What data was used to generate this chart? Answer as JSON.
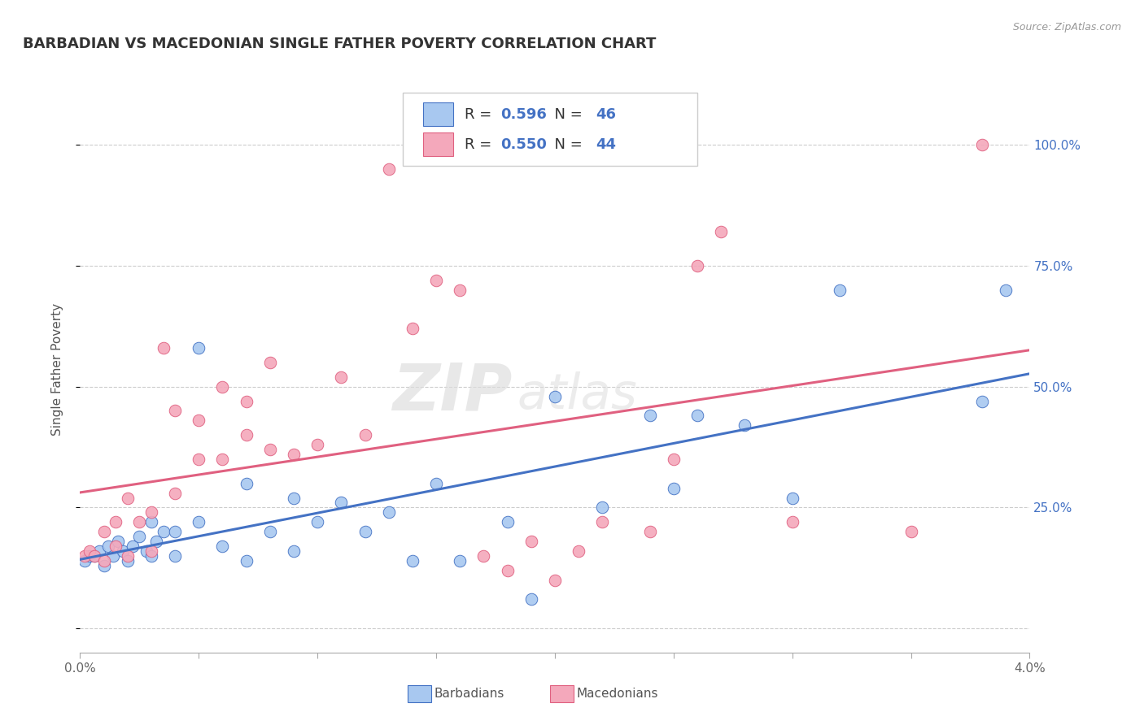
{
  "title": "BARBADIAN VS MACEDONIAN SINGLE FATHER POVERTY CORRELATION CHART",
  "source": "Source: ZipAtlas.com",
  "ylabel": "Single Father Poverty",
  "watermark_1": "ZIP",
  "watermark_2": "atlas",
  "legend_barbadians": "Barbadians",
  "legend_macedonians": "Macedonians",
  "r_barbadians": 0.596,
  "n_barbadians": 46,
  "r_macedonians": 0.55,
  "n_macedonians": 44,
  "color_barbadians": "#A8C8F0",
  "color_macedonians": "#F4A8BB",
  "line_color_barbadians": "#4472C4",
  "line_color_macedonians": "#E06080",
  "text_color_blue": "#4472C4",
  "xlim": [
    0.0,
    0.04
  ],
  "ylim": [
    -0.05,
    1.12
  ],
  "xtick_labels": [
    "0.0%",
    "",
    "",
    "",
    "",
    "",
    "",
    "",
    "4.0%"
  ],
  "ytick_positions": [
    0.0,
    0.25,
    0.5,
    0.75,
    1.0
  ],
  "ytick_labels": [
    "",
    "25.0%",
    "50.0%",
    "75.0%",
    "100.0%"
  ],
  "background_color": "#FFFFFF",
  "grid_color": "#CCCCCC",
  "barbadians_x": [
    0.0002,
    0.0004,
    0.0006,
    0.0008,
    0.001,
    0.0012,
    0.0014,
    0.0016,
    0.0018,
    0.002,
    0.0022,
    0.0025,
    0.0028,
    0.003,
    0.003,
    0.0032,
    0.0035,
    0.004,
    0.004,
    0.005,
    0.005,
    0.006,
    0.007,
    0.007,
    0.008,
    0.009,
    0.009,
    0.01,
    0.011,
    0.012,
    0.013,
    0.014,
    0.015,
    0.016,
    0.018,
    0.019,
    0.02,
    0.022,
    0.024,
    0.025,
    0.026,
    0.028,
    0.03,
    0.032,
    0.038,
    0.039
  ],
  "barbadians_y": [
    0.14,
    0.15,
    0.15,
    0.16,
    0.13,
    0.17,
    0.15,
    0.18,
    0.16,
    0.14,
    0.17,
    0.19,
    0.16,
    0.15,
    0.22,
    0.18,
    0.2,
    0.15,
    0.2,
    0.22,
    0.58,
    0.17,
    0.14,
    0.3,
    0.2,
    0.16,
    0.27,
    0.22,
    0.26,
    0.2,
    0.24,
    0.14,
    0.3,
    0.14,
    0.22,
    0.06,
    0.48,
    0.25,
    0.44,
    0.29,
    0.44,
    0.42,
    0.27,
    0.7,
    0.47,
    0.7
  ],
  "macedonians_x": [
    0.0002,
    0.0004,
    0.0006,
    0.001,
    0.001,
    0.0015,
    0.0015,
    0.002,
    0.002,
    0.0025,
    0.003,
    0.003,
    0.0035,
    0.004,
    0.004,
    0.005,
    0.005,
    0.006,
    0.006,
    0.007,
    0.007,
    0.008,
    0.008,
    0.009,
    0.01,
    0.011,
    0.012,
    0.013,
    0.014,
    0.015,
    0.016,
    0.017,
    0.018,
    0.019,
    0.02,
    0.021,
    0.022,
    0.024,
    0.025,
    0.026,
    0.027,
    0.03,
    0.035,
    0.038
  ],
  "macedonians_y": [
    0.15,
    0.16,
    0.15,
    0.14,
    0.2,
    0.17,
    0.22,
    0.15,
    0.27,
    0.22,
    0.24,
    0.16,
    0.58,
    0.28,
    0.45,
    0.35,
    0.43,
    0.35,
    0.5,
    0.4,
    0.47,
    0.37,
    0.55,
    0.36,
    0.38,
    0.52,
    0.4,
    0.95,
    0.62,
    0.72,
    0.7,
    0.15,
    0.12,
    0.18,
    0.1,
    0.16,
    0.22,
    0.2,
    0.35,
    0.75,
    0.82,
    0.22,
    0.2,
    1.0
  ]
}
